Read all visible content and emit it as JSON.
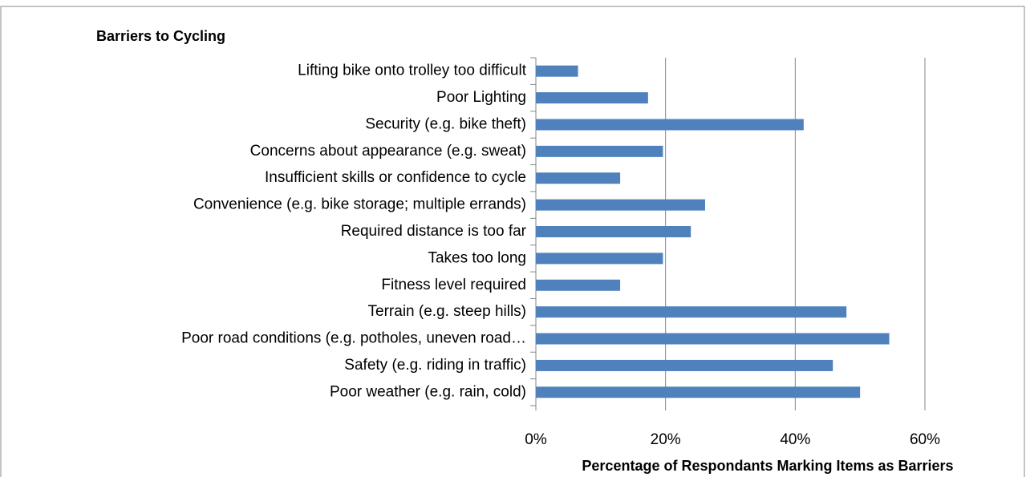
{
  "chart_data": {
    "type": "barh",
    "title": "Barriers to Cycling",
    "categories": [
      "Lifting bike onto trolley too difficult",
      "Poor Lighting",
      "Security (e.g. bike theft)",
      "Concerns about appearance (e.g. sweat)",
      "Insufficient skills or confidence to cycle",
      "Convenience (e.g. bike storage; multiple errands)",
      "Required distance is too far",
      "Takes too long",
      "Fitness level required",
      "Terrain (e.g. steep hills)",
      "Poor road conditions (e.g. potholes, uneven road…",
      "Safety (e.g. riding in traffic)",
      "Poor weather (e.g. rain, cold)"
    ],
    "values": [
      6.5,
      17.3,
      41.3,
      19.6,
      13.0,
      26.1,
      23.9,
      19.6,
      13.0,
      47.9,
      54.5,
      45.8,
      50.0
    ],
    "color": "#4f81bd",
    "xlabel": "Percentage of Respondants Marking Items as Barriers",
    "xlim": [
      0,
      60
    ],
    "xticks": [
      {
        "value": 0,
        "label": "0%"
      },
      {
        "value": 20,
        "label": "20%"
      },
      {
        "value": 40,
        "label": "40%"
      },
      {
        "value": 60,
        "label": "60%"
      }
    ],
    "grid": true
  }
}
